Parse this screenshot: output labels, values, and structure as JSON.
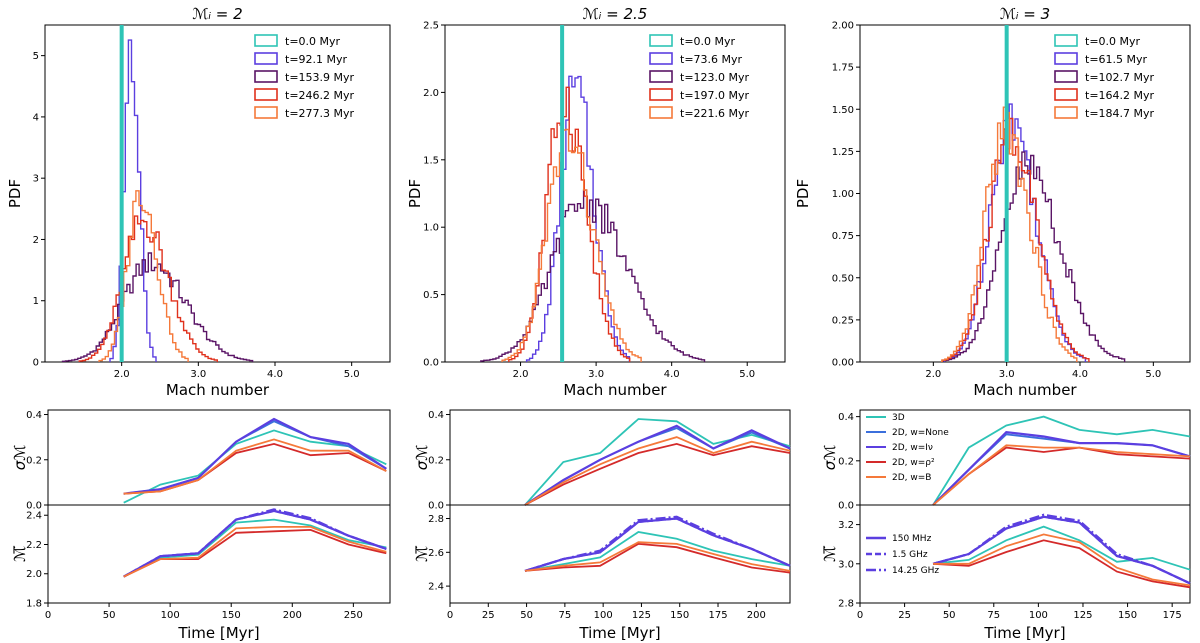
{
  "chart_data": [
    {
      "type": "histogram",
      "title": "ℳᵢ = 2",
      "xlabel": "Mach number",
      "ylabel": "PDF",
      "xlim": [
        1.0,
        5.5
      ],
      "ylim": [
        0,
        5.5
      ],
      "xticks": [
        "2.0",
        "3.0",
        "4.0",
        "5.0"
      ],
      "xtick_values": [
        2.0,
        3.0,
        4.0,
        5.0
      ],
      "yticks": [
        "0",
        "1",
        "2",
        "3",
        "4",
        "5"
      ],
      "ytick_values": [
        0,
        1,
        2,
        3,
        4,
        5
      ],
      "legend_position": "top-right",
      "initial_line": {
        "name": "t=0.0 Myr",
        "x": 2.0,
        "color": "#2ec4b6"
      },
      "series": [
        {
          "name": "t=92.1 Myr",
          "color": "#5b3fe0",
          "mean": 2.12,
          "sigma": 0.085,
          "peak": 5.15
        },
        {
          "name": "t=153.9 Myr",
          "color": "#5a1566",
          "mean": 2.38,
          "sigma": 0.36,
          "peak": 1.62
        },
        {
          "name": "t=246.2 Myr",
          "color": "#e0311c",
          "mean": 2.28,
          "sigma": 0.26,
          "peak": 2.3
        },
        {
          "name": "t=277.3 Myr",
          "color": "#f5793a",
          "mean": 2.25,
          "sigma": 0.17,
          "peak": 2.8
        }
      ]
    },
    {
      "type": "histogram",
      "title": "ℳᵢ = 2.5",
      "xlabel": "Mach number",
      "ylabel": "PDF",
      "xlim": [
        1.0,
        5.5
      ],
      "ylim": [
        0,
        2.5
      ],
      "xticks": [
        "2.0",
        "3.0",
        "4.0",
        "5.0"
      ],
      "xtick_values": [
        2.0,
        3.0,
        4.0,
        5.0
      ],
      "yticks": [
        "0.0",
        "0.5",
        "1.0",
        "1.5",
        "2.0",
        "2.5"
      ],
      "ytick_values": [
        0,
        0.5,
        1.0,
        1.5,
        2.0,
        2.5
      ],
      "legend_position": "top-right",
      "initial_line": {
        "name": "t=0.0 Myr",
        "x": 2.55,
        "color": "#2ec4b6"
      },
      "series": [
        {
          "name": "t=73.6 Myr",
          "color": "#5b3fe0",
          "mean": 2.72,
          "sigma": 0.2,
          "peak": 2.02
        },
        {
          "name": "t=123.0 Myr",
          "color": "#5a1566",
          "mean": 2.85,
          "sigma": 0.43,
          "peak": 1.2
        },
        {
          "name": "t=197.0 Myr",
          "color": "#e0311c",
          "mean": 2.58,
          "sigma": 0.23,
          "peak": 1.95
        },
        {
          "name": "t=221.6 Myr",
          "color": "#f5793a",
          "mean": 2.62,
          "sigma": 0.27,
          "peak": 1.65
        }
      ]
    },
    {
      "type": "histogram",
      "title": "ℳᵢ = 3",
      "xlabel": "Mach number",
      "ylabel": "PDF",
      "xlim": [
        1.0,
        5.5
      ],
      "ylim": [
        0,
        2.0
      ],
      "xticks": [
        "2.0",
        "3.0",
        "4.0",
        "5.0"
      ],
      "xtick_values": [
        2.0,
        3.0,
        4.0,
        5.0
      ],
      "yticks": [
        "0.00",
        "0.25",
        "0.50",
        "0.75",
        "1.00",
        "1.25",
        "1.50",
        "1.75",
        "2.00"
      ],
      "ytick_values": [
        0,
        0.25,
        0.5,
        0.75,
        1.0,
        1.25,
        1.5,
        1.75,
        2.0
      ],
      "legend_position": "top-right",
      "initial_line": {
        "name": "t=0.0 Myr",
        "x": 3.0,
        "color": "#2ec4b6"
      },
      "series": [
        {
          "name": "t=61.5 Myr",
          "color": "#5b3fe0",
          "mean": 3.05,
          "sigma": 0.28,
          "peak": 1.45
        },
        {
          "name": "t=102.7 Myr",
          "color": "#5a1566",
          "mean": 3.28,
          "sigma": 0.36,
          "peak": 1.15
        },
        {
          "name": "t=164.2 Myr",
          "color": "#e0311c",
          "mean": 3.05,
          "sigma": 0.29,
          "peak": 1.35
        },
        {
          "name": "t=184.7 Myr",
          "color": "#f5793a",
          "mean": 2.98,
          "sigma": 0.27,
          "peak": 1.4
        }
      ]
    },
    {
      "type": "line",
      "ylabel": "σℳ",
      "xlim": [
        0,
        280
      ],
      "ylim": [
        0.0,
        0.42
      ],
      "yticks": [
        "0.0",
        "0.2",
        "0.4"
      ],
      "ytick_values": [
        0.0,
        0.2,
        0.4
      ],
      "x": [
        62,
        92,
        123,
        154,
        185,
        215,
        246,
        277
      ],
      "series": [
        {
          "name": "3D",
          "color": "#2ec4b6",
          "values": [
            0.01,
            0.09,
            0.13,
            0.27,
            0.33,
            0.28,
            0.26,
            0.18
          ]
        },
        {
          "name": "2D, w=None",
          "color": "#3b6fdc",
          "values": [
            0.05,
            0.07,
            0.12,
            0.28,
            0.37,
            0.3,
            0.26,
            0.16
          ]
        },
        {
          "name": "2D, w=Iν",
          "color": "#5b3fe0",
          "values": [
            0.05,
            0.07,
            0.12,
            0.28,
            0.38,
            0.3,
            0.27,
            0.16
          ]
        },
        {
          "name": "2D, w=ρ²",
          "color": "#d42a2a",
          "values": [
            0.05,
            0.06,
            0.11,
            0.23,
            0.27,
            0.22,
            0.23,
            0.15
          ]
        },
        {
          "name": "2D, w=B",
          "color": "#f5793a",
          "values": [
            0.05,
            0.06,
            0.11,
            0.24,
            0.29,
            0.24,
            0.24,
            0.15
          ]
        }
      ]
    },
    {
      "type": "line",
      "ylabel": "ℳ̅",
      "xlabel": "Time [Myr]",
      "xlim": [
        0,
        280
      ],
      "ylim": [
        1.8,
        2.47
      ],
      "yticks": [
        "1.8",
        "2.0",
        "2.2",
        "2.4"
      ],
      "ytick_values": [
        1.8,
        2.0,
        2.2,
        2.4
      ],
      "xticks": [
        "0",
        "50",
        "100",
        "150",
        "200",
        "250"
      ],
      "xtick_values": [
        0,
        50,
        100,
        150,
        200,
        250
      ],
      "x": [
        62,
        92,
        123,
        154,
        185,
        215,
        246,
        277
      ],
      "series": [
        {
          "name": "3D",
          "color": "#2ec4b6",
          "values": [
            1.98,
            2.11,
            2.13,
            2.35,
            2.37,
            2.33,
            2.23,
            2.18
          ]
        },
        {
          "name": "150 MHz",
          "color": "#5b3fe0",
          "dash": "solid",
          "values": [
            1.98,
            2.12,
            2.14,
            2.37,
            2.43,
            2.37,
            2.26,
            2.17
          ]
        },
        {
          "name": "1.5 GHz",
          "color": "#5b3fe0",
          "dash": "6,3",
          "values": [
            1.98,
            2.12,
            2.14,
            2.37,
            2.43,
            2.37,
            2.26,
            2.17
          ]
        },
        {
          "name": "14.25 GHz",
          "color": "#5b3fe0",
          "dash": "10,3,2,3",
          "values": [
            1.98,
            2.12,
            2.14,
            2.37,
            2.44,
            2.38,
            2.26,
            2.17
          ]
        },
        {
          "name": "2D, w=ρ²",
          "color": "#d42a2a",
          "values": [
            1.98,
            2.1,
            2.1,
            2.28,
            2.29,
            2.3,
            2.2,
            2.14
          ]
        },
        {
          "name": "2D, w=B",
          "color": "#f5793a",
          "values": [
            1.98,
            2.1,
            2.11,
            2.31,
            2.32,
            2.32,
            2.22,
            2.15
          ]
        }
      ]
    },
    {
      "type": "line",
      "ylabel": "σℳ",
      "xlim": [
        0,
        222
      ],
      "ylim": [
        0.0,
        0.42
      ],
      "yticks": [
        "0.0",
        "0.2",
        "0.4"
      ],
      "ytick_values": [
        0.0,
        0.2,
        0.4
      ],
      "x": [
        49,
        74,
        98,
        123,
        148,
        172,
        197,
        222
      ],
      "series": [
        {
          "name": "3D",
          "color": "#2ec4b6",
          "values": [
            0.0,
            0.19,
            0.23,
            0.38,
            0.37,
            0.27,
            0.31,
            0.26
          ]
        },
        {
          "name": "2D, w=None",
          "color": "#3b6fdc",
          "values": [
            0.0,
            0.11,
            0.2,
            0.28,
            0.34,
            0.25,
            0.32,
            0.25
          ]
        },
        {
          "name": "2D, w=Iν",
          "color": "#5b3fe0",
          "values": [
            0.0,
            0.11,
            0.2,
            0.28,
            0.35,
            0.25,
            0.33,
            0.25
          ]
        },
        {
          "name": "2D, w=ρ²",
          "color": "#d42a2a",
          "values": [
            0.0,
            0.09,
            0.16,
            0.23,
            0.27,
            0.22,
            0.26,
            0.23
          ]
        },
        {
          "name": "2D, w=B",
          "color": "#f5793a",
          "values": [
            0.0,
            0.1,
            0.18,
            0.25,
            0.3,
            0.23,
            0.28,
            0.24
          ]
        }
      ]
    },
    {
      "type": "line",
      "ylabel": "ℳ̅",
      "xlabel": "Time [Myr]",
      "xlim": [
        0,
        222
      ],
      "ylim": [
        2.3,
        2.88
      ],
      "yticks": [
        "2.4",
        "2.6",
        "2.8"
      ],
      "ytick_values": [
        2.4,
        2.6,
        2.8
      ],
      "xticks": [
        "0",
        "25",
        "50",
        "75",
        "100",
        "125",
        "150",
        "175",
        "200"
      ],
      "xtick_values": [
        0,
        25,
        50,
        75,
        100,
        125,
        150,
        175,
        200
      ],
      "x": [
        49,
        74,
        98,
        123,
        148,
        172,
        197,
        222
      ],
      "series": [
        {
          "name": "3D",
          "color": "#2ec4b6",
          "values": [
            2.49,
            2.53,
            2.57,
            2.72,
            2.68,
            2.61,
            2.56,
            2.52
          ]
        },
        {
          "name": "150 MHz",
          "color": "#5b3fe0",
          "dash": "solid",
          "values": [
            2.49,
            2.56,
            2.6,
            2.78,
            2.8,
            2.7,
            2.62,
            2.52
          ]
        },
        {
          "name": "1.5 GHz",
          "color": "#5b3fe0",
          "dash": "6,3",
          "values": [
            2.49,
            2.56,
            2.6,
            2.78,
            2.8,
            2.7,
            2.62,
            2.52
          ]
        },
        {
          "name": "14.25 GHz",
          "color": "#5b3fe0",
          "dash": "10,3,2,3",
          "values": [
            2.49,
            2.56,
            2.61,
            2.79,
            2.81,
            2.71,
            2.62,
            2.52
          ]
        },
        {
          "name": "2D, w=ρ²",
          "color": "#d42a2a",
          "values": [
            2.49,
            2.51,
            2.52,
            2.65,
            2.63,
            2.57,
            2.51,
            2.48
          ]
        },
        {
          "name": "2D, w=B",
          "color": "#f5793a",
          "values": [
            2.49,
            2.52,
            2.54,
            2.66,
            2.65,
            2.59,
            2.53,
            2.49
          ]
        }
      ]
    },
    {
      "type": "line",
      "ylabel": "σℳ",
      "xlim": [
        0,
        185
      ],
      "ylim": [
        0.0,
        0.43
      ],
      "yticks": [
        "0.0",
        "0.2",
        "0.4"
      ],
      "ytick_values": [
        0.0,
        0.2,
        0.4
      ],
      "x": [
        41,
        61,
        82,
        103,
        123,
        144,
        164,
        185
      ],
      "legend_position": "upper-left",
      "series": [
        {
          "name": "3D",
          "color": "#2ec4b6",
          "values": [
            0.0,
            0.26,
            0.36,
            0.4,
            0.34,
            0.32,
            0.34,
            0.31
          ]
        },
        {
          "name": "2D, w=None",
          "color": "#3b6fdc",
          "values": [
            0.0,
            0.16,
            0.32,
            0.3,
            0.28,
            0.28,
            0.27,
            0.22
          ]
        },
        {
          "name": "2D, w=Iν",
          "color": "#5b3fe0",
          "values": [
            0.0,
            0.16,
            0.33,
            0.31,
            0.28,
            0.28,
            0.27,
            0.22
          ]
        },
        {
          "name": "2D, w=ρ²",
          "color": "#d42a2a",
          "values": [
            0.0,
            0.14,
            0.26,
            0.24,
            0.26,
            0.23,
            0.22,
            0.21
          ]
        },
        {
          "name": "2D, w=B",
          "color": "#f5793a",
          "values": [
            0.0,
            0.14,
            0.27,
            0.26,
            0.26,
            0.24,
            0.23,
            0.22
          ]
        }
      ]
    },
    {
      "type": "line",
      "ylabel": "ℳ̅",
      "xlabel": "Time [Myr]",
      "xlim": [
        0,
        185
      ],
      "ylim": [
        2.8,
        3.3
      ],
      "yticks": [
        "2.8",
        "3.0",
        "3.2"
      ],
      "ytick_values": [
        2.8,
        3.0,
        3.2
      ],
      "xticks": [
        "0",
        "25",
        "50",
        "75",
        "100",
        "125",
        "150",
        "175"
      ],
      "xtick_values": [
        0,
        25,
        50,
        75,
        100,
        125,
        150,
        175
      ],
      "x": [
        41,
        61,
        82,
        103,
        123,
        144,
        164,
        185
      ],
      "legend_position": "lower-left",
      "series": [
        {
          "name": "3D",
          "color": "#2ec4b6",
          "values": [
            3.0,
            3.02,
            3.12,
            3.19,
            3.12,
            3.01,
            3.03,
            2.97
          ]
        },
        {
          "name": "150 MHz",
          "color": "#5b3fe0",
          "dash": "solid",
          "values": [
            3.0,
            3.05,
            3.18,
            3.24,
            3.21,
            3.04,
            2.99,
            2.9
          ]
        },
        {
          "name": "1.5 GHz",
          "color": "#5b3fe0",
          "dash": "6,3",
          "values": [
            3.0,
            3.05,
            3.18,
            3.24,
            3.21,
            3.04,
            2.99,
            2.9
          ]
        },
        {
          "name": "14.25 GHz",
          "color": "#5b3fe0",
          "dash": "10,3,2,3",
          "values": [
            3.0,
            3.05,
            3.19,
            3.25,
            3.22,
            3.05,
            2.99,
            2.9
          ]
        },
        {
          "name": "2D, w=ρ²",
          "color": "#d42a2a",
          "values": [
            3.0,
            2.99,
            3.06,
            3.12,
            3.08,
            2.96,
            2.91,
            2.88
          ]
        },
        {
          "name": "2D, w=B",
          "color": "#f5793a",
          "values": [
            3.0,
            3.0,
            3.09,
            3.15,
            3.11,
            2.98,
            2.92,
            2.89
          ]
        }
      ]
    }
  ]
}
